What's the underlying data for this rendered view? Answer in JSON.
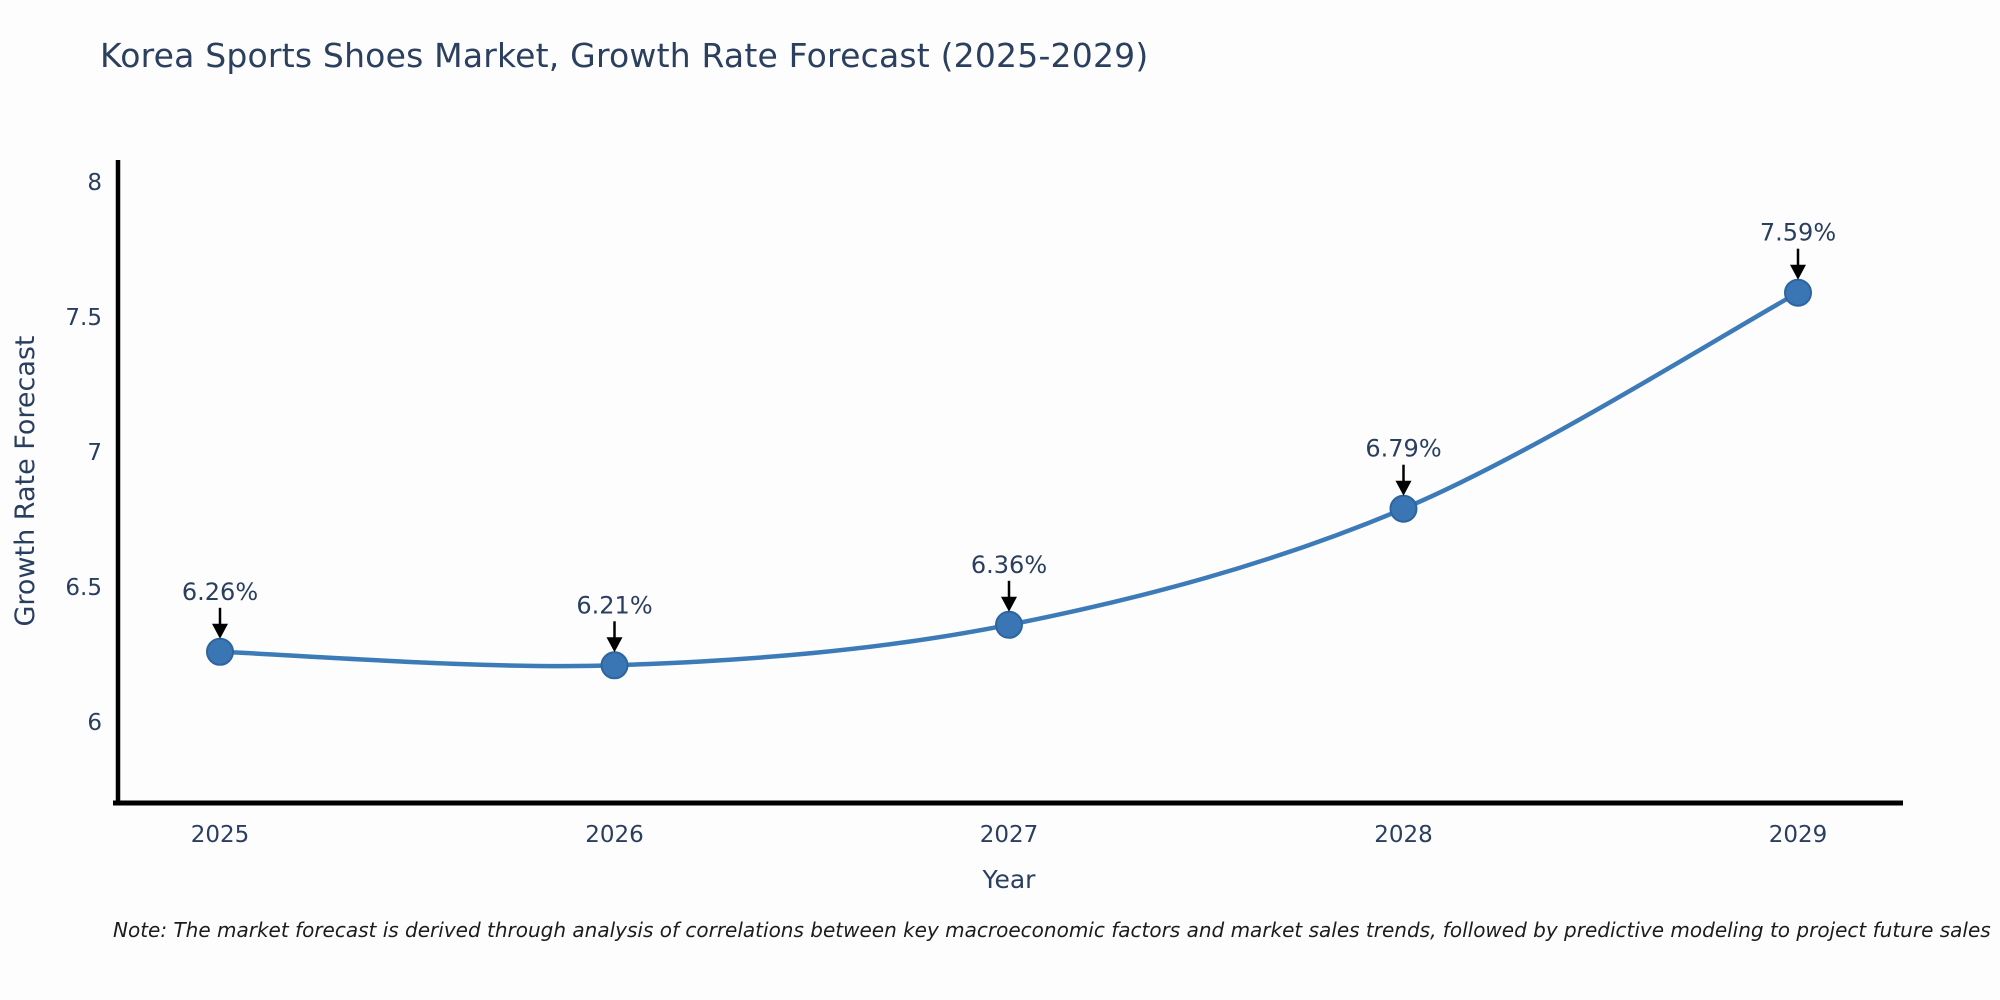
{
  "title": "Korea Sports Shoes Market, Growth Rate Forecast (2025-2029)",
  "note": "Note: The market forecast is derived through analysis of correlations between key macroeconomic factors and market sales trends, followed by predictive modeling to project future sales",
  "chart_data": {
    "type": "line",
    "title": "Korea Sports Shoes Market, Growth Rate Forecast (2025-2029)",
    "x": [
      2025,
      2026,
      2027,
      2028,
      2029
    ],
    "x_tick_labels": [
      "2025",
      "2026",
      "2027",
      "2028",
      "2029"
    ],
    "series": [
      {
        "name": "Growth Rate Forecast",
        "values": [
          6.26,
          6.21,
          6.36,
          6.79,
          7.59
        ],
        "point_labels": [
          "6.26%",
          "6.21%",
          "6.36%",
          "6.79%",
          "7.59%"
        ]
      }
    ],
    "xlabel": "Year",
    "ylabel": "Growth Rate Forecast",
    "yticks": [
      6,
      6.5,
      7,
      7.5,
      8
    ],
    "ytick_labels": [
      "6",
      "6.5",
      "7",
      "7.5",
      "8"
    ],
    "ylim": [
      5.7,
      8.08
    ],
    "grid": false,
    "legend": "none",
    "line_style": "spline",
    "annotations": "value labels with black arrows pointing to each marker",
    "colors": {
      "line": "#3d7bb8",
      "marker_fill": "#3a76b4",
      "marker_edge": "#2e659e",
      "axis": "#000000",
      "tick_text": "#2a3f5f",
      "title_text": "#2b3f5e",
      "annotation_text": "#2a3f5f",
      "annotation_arrow": "#000000",
      "background": "#fdfdfd"
    }
  }
}
